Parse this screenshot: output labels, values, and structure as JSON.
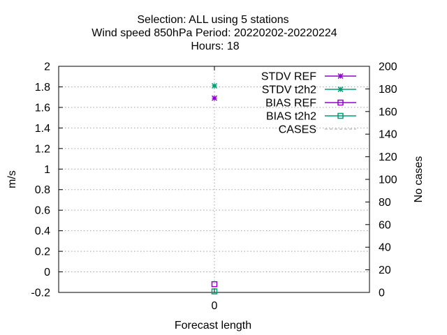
{
  "chart_data": {
    "type": "scatter",
    "title_lines": [
      "Selection: ALL using      5 stations",
      "Wind speed 850hPa   Period: 20220202-20220224",
      "Hours:  18"
    ],
    "xlabel": "Forecast length",
    "ylabel": "m/s",
    "y2label": "No cases",
    "x_categories": [
      "0"
    ],
    "ylim": [
      -0.2,
      2
    ],
    "y_ticks": [
      "2",
      "1.8",
      "1.6",
      "1.4",
      "1.2",
      "1",
      "0.8",
      "0.6",
      "0.4",
      "0.2",
      "0",
      "-0.2"
    ],
    "y2lim": [
      0,
      200
    ],
    "y2_ticks": [
      "200",
      "180",
      "160",
      "140",
      "120",
      "100",
      "80",
      "60",
      "40",
      "20",
      "0"
    ],
    "grid": true,
    "legend_position": "top-right",
    "series": [
      {
        "name": "STDV REF",
        "color": "#9400d3",
        "marker": "star",
        "x": [
          0
        ],
        "values": [
          1.69
        ]
      },
      {
        "name": "STDV t2h2",
        "color": "#009e73",
        "marker": "star",
        "x": [
          0
        ],
        "values": [
          1.81
        ]
      },
      {
        "name": "BIAS REF",
        "color": "#9400d3",
        "marker": "square",
        "x": [
          0
        ],
        "values": [
          -0.12
        ]
      },
      {
        "name": "BIAS t2h2",
        "color": "#009e73",
        "marker": "square",
        "x": [
          0
        ],
        "values": [
          -0.19
        ]
      },
      {
        "name": "CASES",
        "color": "#a0a0a0",
        "marker": "none",
        "x": [
          0
        ],
        "values": [
          null
        ]
      }
    ]
  }
}
